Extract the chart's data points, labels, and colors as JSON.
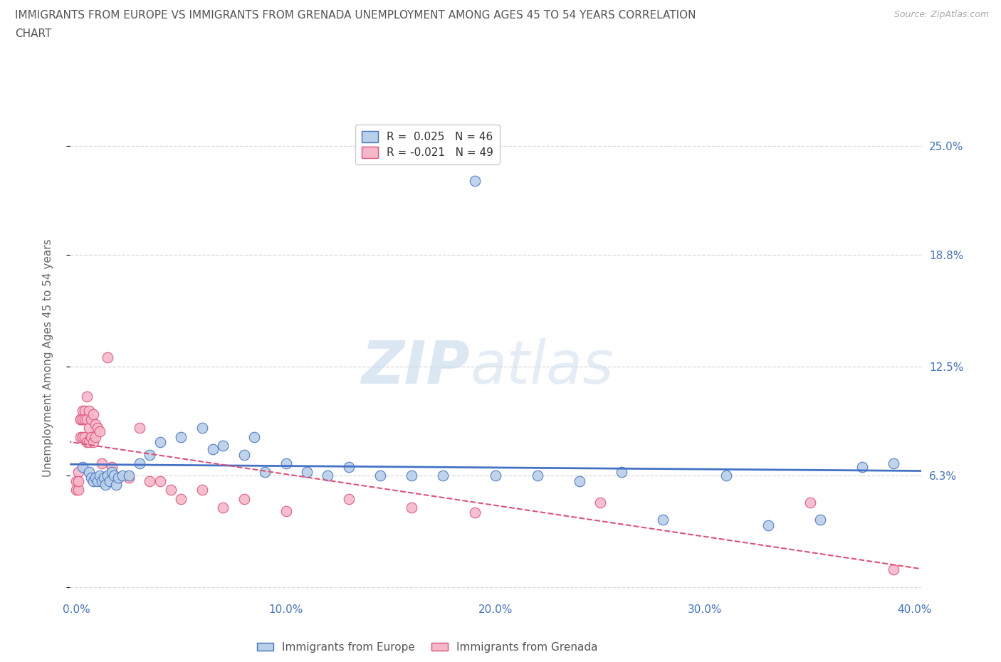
{
  "title_line1": "IMMIGRANTS FROM EUROPE VS IMMIGRANTS FROM GRENADA UNEMPLOYMENT AMONG AGES 45 TO 54 YEARS CORRELATION",
  "title_line2": "CHART",
  "source": "Source: ZipAtlas.com",
  "ylabel": "Unemployment Among Ages 45 to 54 years",
  "xlim": [
    -0.003,
    0.403
  ],
  "ylim": [
    -0.005,
    0.265
  ],
  "yticks": [
    0.0,
    0.063,
    0.125,
    0.188,
    0.25
  ],
  "ytick_labels": [
    "",
    "6.3%",
    "12.5%",
    "18.8%",
    "25.0%"
  ],
  "xticks": [
    0.0,
    0.1,
    0.2,
    0.3,
    0.4
  ],
  "xtick_labels": [
    "0.0%",
    "10.0%",
    "20.0%",
    "30.0%",
    "40.0%"
  ],
  "blue_R": "0.025",
  "blue_N": 46,
  "pink_R": "-0.021",
  "pink_N": 49,
  "blue_color": "#b8d0e8",
  "pink_color": "#f5b8cb",
  "blue_edge_color": "#4472c4",
  "pink_edge_color": "#e05075",
  "blue_line_color": "#4472c4",
  "pink_line_color": "#e05075",
  "legend_blue_label": "Immigrants from Europe",
  "legend_pink_label": "Immigrants from Grenada",
  "watermark_zip": "ZIP",
  "watermark_atlas": "atlas",
  "background_color": "#ffffff",
  "grid_color": "#d8d8d8",
  "blue_x": [
    0.003,
    0.006,
    0.007,
    0.008,
    0.009,
    0.01,
    0.011,
    0.012,
    0.013,
    0.014,
    0.015,
    0.016,
    0.017,
    0.018,
    0.019,
    0.02,
    0.022,
    0.025,
    0.03,
    0.035,
    0.04,
    0.05,
    0.06,
    0.065,
    0.07,
    0.08,
    0.085,
    0.09,
    0.1,
    0.11,
    0.12,
    0.13,
    0.145,
    0.16,
    0.175,
    0.19,
    0.2,
    0.22,
    0.24,
    0.26,
    0.28,
    0.31,
    0.33,
    0.355,
    0.375,
    0.39
  ],
  "blue_y": [
    0.068,
    0.065,
    0.062,
    0.06,
    0.062,
    0.06,
    0.063,
    0.06,
    0.062,
    0.058,
    0.063,
    0.06,
    0.065,
    0.063,
    0.058,
    0.062,
    0.063,
    0.063,
    0.07,
    0.075,
    0.082,
    0.085,
    0.09,
    0.078,
    0.08,
    0.075,
    0.085,
    0.065,
    0.07,
    0.065,
    0.063,
    0.068,
    0.063,
    0.063,
    0.063,
    0.23,
    0.063,
    0.063,
    0.06,
    0.065,
    0.038,
    0.063,
    0.035,
    0.038,
    0.068,
    0.07
  ],
  "pink_x": [
    0.0,
    0.0,
    0.001,
    0.001,
    0.001,
    0.002,
    0.002,
    0.002,
    0.003,
    0.003,
    0.003,
    0.004,
    0.004,
    0.004,
    0.005,
    0.005,
    0.005,
    0.006,
    0.006,
    0.006,
    0.007,
    0.007,
    0.008,
    0.008,
    0.009,
    0.009,
    0.01,
    0.011,
    0.012,
    0.013,
    0.015,
    0.017,
    0.02,
    0.025,
    0.03,
    0.035,
    0.04,
    0.045,
    0.05,
    0.06,
    0.07,
    0.08,
    0.1,
    0.13,
    0.16,
    0.19,
    0.25,
    0.35,
    0.39
  ],
  "pink_y": [
    0.055,
    0.06,
    0.055,
    0.065,
    0.06,
    0.095,
    0.095,
    0.085,
    0.1,
    0.095,
    0.085,
    0.1,
    0.095,
    0.085,
    0.108,
    0.095,
    0.082,
    0.1,
    0.09,
    0.082,
    0.095,
    0.085,
    0.098,
    0.082,
    0.092,
    0.085,
    0.09,
    0.088,
    0.07,
    0.062,
    0.13,
    0.068,
    0.062,
    0.062,
    0.09,
    0.06,
    0.06,
    0.055,
    0.05,
    0.055,
    0.045,
    0.05,
    0.043,
    0.05,
    0.045,
    0.042,
    0.048,
    0.048,
    0.01
  ]
}
